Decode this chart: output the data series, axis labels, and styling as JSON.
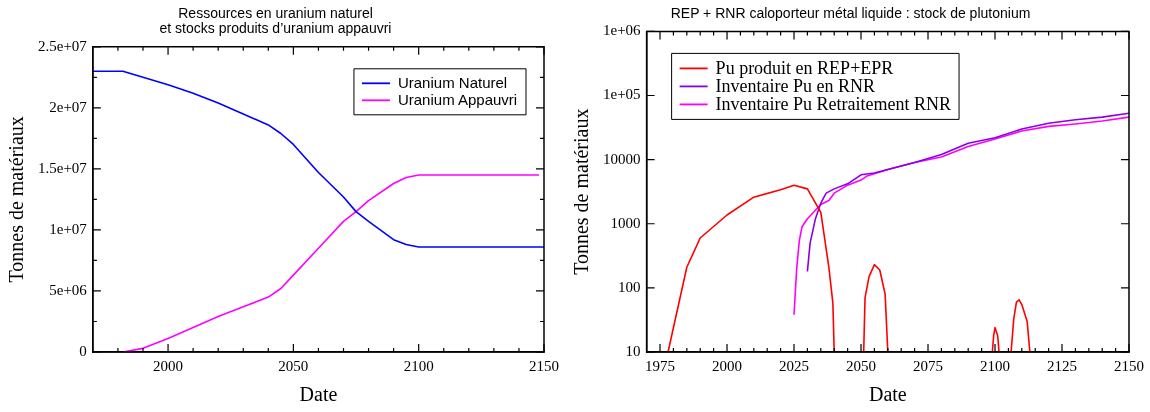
{
  "chart_data": [
    {
      "type": "line",
      "title": "Ressources en uranium naturel\net stocks produits d’uranium appauvri",
      "xlabel": "Date",
      "ylabel": "Tonnes de matériaux",
      "legend": "top right",
      "marker": "none",
      "line_style": "solid",
      "grid": false,
      "xlim": [
        1970,
        2150
      ],
      "xticks": [
        {
          "value": 1980,
          "label": null
        },
        {
          "value": 1990,
          "label": null
        },
        2000,
        {
          "value": 2010,
          "label": null
        },
        {
          "value": 2020,
          "label": null
        },
        {
          "value": 2030,
          "label": null
        },
        {
          "value": 2040,
          "label": null
        },
        2050,
        {
          "value": 2060,
          "label": null
        },
        {
          "value": 2070,
          "label": null
        },
        {
          "value": 2080,
          "label": null
        },
        {
          "value": 2090,
          "label": null
        },
        2100,
        {
          "value": 2110,
          "label": null
        },
        {
          "value": 2120,
          "label": null
        },
        {
          "value": 2130,
          "label": null
        },
        {
          "value": 2140,
          "label": null
        },
        2150
      ],
      "ylim": [
        0,
        25000000
      ],
      "yticks": [
        0,
        {
          "value": 2500000,
          "label": null
        },
        {
          "value": 5000000,
          "label": "5e+06"
        },
        {
          "value": 7500000,
          "label": null
        },
        {
          "value": 10000000,
          "label": "1e+07"
        },
        {
          "value": 12500000,
          "label": null
        },
        {
          "value": 15000000,
          "label": "1.5e+07"
        },
        {
          "value": 17500000,
          "label": null
        },
        {
          "value": 20000000,
          "label": "2e+07"
        },
        {
          "value": 22500000,
          "label": null
        },
        {
          "value": 25000000,
          "label": "2.5e+07"
        }
      ],
      "series": [
        {
          "name": "Uranium Naturel",
          "color": "#0000ff",
          "x": [
            1970,
            1982,
            1990,
            2000,
            2010,
            2020,
            2030,
            2040,
            2045,
            2050,
            2060,
            2070,
            2075,
            2080,
            2090,
            2095,
            2100,
            2150
          ],
          "values": [
            23000000,
            23000000,
            22500000,
            21900000,
            21200000,
            20400000,
            19500000,
            18600000,
            17900000,
            17000000,
            14700000,
            12700000,
            11500000,
            10700000,
            9200000,
            8800000,
            8600000,
            8600000
          ]
        },
        {
          "name": "Uranium Appauvri",
          "color": "#ff00ff",
          "x": [
            1982,
            1990,
            2000,
            2010,
            2020,
            2030,
            2040,
            2045,
            2050,
            2060,
            2070,
            2075,
            2080,
            2090,
            2095,
            2100,
            2148
          ],
          "values": [
            0,
            300000,
            1100000,
            2000000,
            2900000,
            3700000,
            4500000,
            5200000,
            6300000,
            8500000,
            10700000,
            11500000,
            12400000,
            13800000,
            14300000,
            14500000,
            14500000
          ]
        }
      ]
    },
    {
      "type": "line",
      "title": "REP + RNR caloporteur métal liquide : stock de plutonium",
      "xlabel": "Date",
      "ylabel": "Tonnes de matériaux",
      "legend": "top left",
      "marker": "none",
      "line_style": "solid",
      "grid": false,
      "log": "y",
      "xlim": [
        1970,
        2150
      ],
      "xticks": [
        1975,
        {
          "value": 1980,
          "label": null
        },
        {
          "value": 1985,
          "label": null
        },
        {
          "value": 1990,
          "label": null
        },
        {
          "value": 1995,
          "label": null
        },
        2000,
        {
          "value": 2005,
          "label": null
        },
        {
          "value": 2010,
          "label": null
        },
        {
          "value": 2015,
          "label": null
        },
        {
          "value": 2020,
          "label": null
        },
        2025,
        {
          "value": 2030,
          "label": null
        },
        {
          "value": 2035,
          "label": null
        },
        {
          "value": 2040,
          "label": null
        },
        {
          "value": 2045,
          "label": null
        },
        2050,
        {
          "value": 2055,
          "label": null
        },
        {
          "value": 2060,
          "label": null
        },
        {
          "value": 2065,
          "label": null
        },
        {
          "value": 2070,
          "label": null
        },
        2075,
        {
          "value": 2080,
          "label": null
        },
        {
          "value": 2085,
          "label": null
        },
        {
          "value": 2090,
          "label": null
        },
        {
          "value": 2095,
          "label": null
        },
        2100,
        {
          "value": 2105,
          "label": null
        },
        {
          "value": 2110,
          "label": null
        },
        {
          "value": 2115,
          "label": null
        },
        {
          "value": 2120,
          "label": null
        },
        2125,
        {
          "value": 2130,
          "label": null
        },
        {
          "value": 2135,
          "label": null
        },
        {
          "value": 2140,
          "label": null
        },
        {
          "value": 2145,
          "label": null
        },
        2150
      ],
      "ylim": [
        10,
        1000000
      ],
      "yticks": [
        10,
        100,
        1000,
        10000,
        {
          "value": 100000,
          "label": "1e+05"
        },
        {
          "value": 1000000,
          "label": "1e+06"
        }
      ],
      "series": [
        {
          "name": "Pu produit en REP+EPR",
          "color": "#ff0000",
          "x": [
            1978,
            1985,
            1990,
            2000,
            2010,
            2020,
            2025,
            2030,
            2035,
            2038,
            2039.5,
            2040,
            2045,
            2051,
            2051.5,
            2053,
            2055,
            2057,
            2059,
            2060,
            2080,
            2099,
            2099.5,
            2100,
            2101,
            2101.5,
            2104,
            2106,
            2107,
            2108,
            2109,
            2110,
            2112,
            2113
          ],
          "values": [
            10,
            210,
            600,
            1370,
            2600,
            3400,
            4000,
            3500,
            1500,
            210,
            58,
            10,
            null,
            10,
            70,
            150,
            230,
            190,
            80,
            10,
            null,
            10,
            18,
            24,
            18,
            10,
            null,
            10,
            33,
            60,
            65,
            55,
            30,
            10
          ]
        },
        {
          "name": "Inventaire Pu en RNR",
          "color": "#8a00e6",
          "x": [
            2030,
            2031,
            2033,
            2035,
            2037,
            2040,
            2045,
            2050,
            2055,
            2060,
            2070,
            2080,
            2090,
            2100,
            2110,
            2120,
            2130,
            2140,
            2150
          ],
          "values": [
            180,
            500,
            1200,
            2100,
            3000,
            3500,
            4200,
            5800,
            6200,
            7000,
            9000,
            12000,
            18000,
            22000,
            30000,
            37000,
            42000,
            46000,
            53000
          ]
        },
        {
          "name": "Inventaire Pu Retraitement RNR",
          "color": "#ff00ff",
          "x": [
            2025,
            2026,
            2027,
            2028,
            2030,
            2035,
            2038,
            2040,
            2045,
            2050,
            2052,
            2060,
            2070,
            2080,
            2090,
            2100,
            2110,
            2120,
            2130,
            2140,
            2150
          ],
          "values": [
            38,
            200,
            550,
            900,
            1200,
            2000,
            2300,
            3000,
            4000,
            4800,
            5500,
            7000,
            9000,
            11000,
            16000,
            21000,
            28000,
            33000,
            36000,
            40000,
            46000
          ]
        }
      ]
    }
  ]
}
